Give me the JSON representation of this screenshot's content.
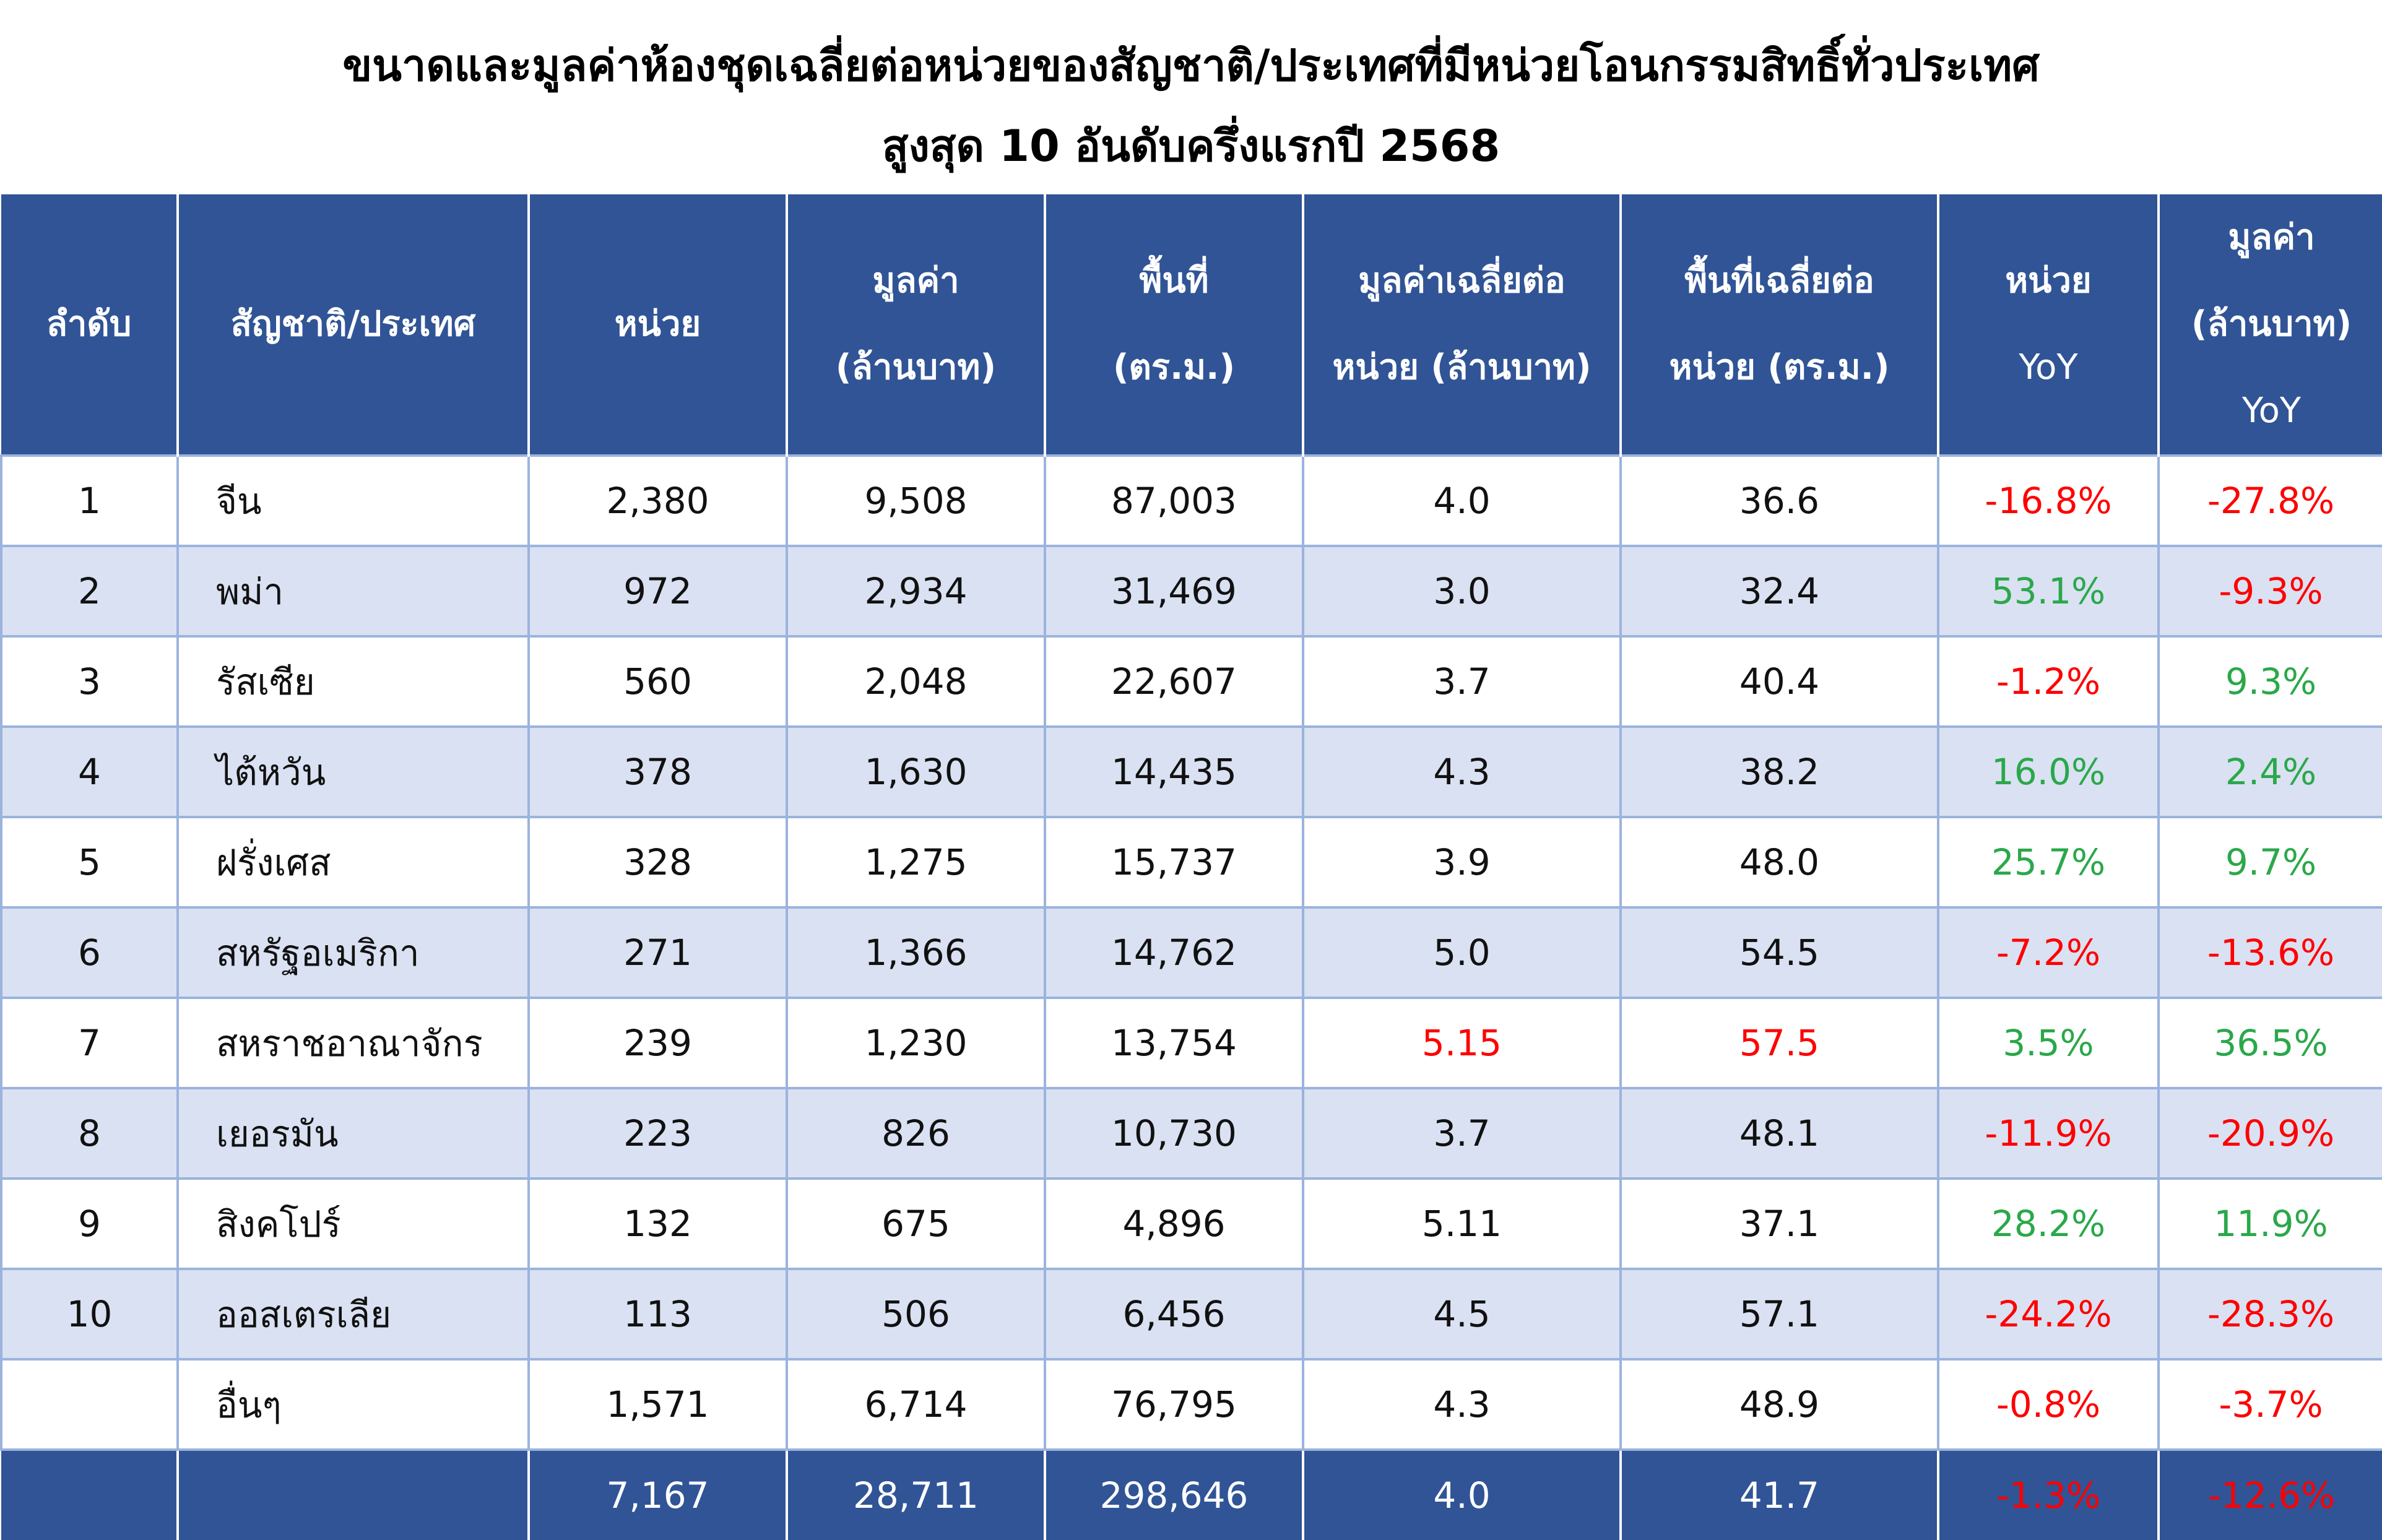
{
  "title": {
    "line1": "ขนาดและมูลค่าห้องชุดเฉลี่ยต่อหน่วยของสัญชาติ/ประเทศที่มีหน่วยโอนกรรมสิทธิ์ทั่วประเทศ",
    "line2": "สูงสุด 10 อันดับครึ่งแรกปี 2568"
  },
  "headers": [
    {
      "l1": "ลำดับ"
    },
    {
      "l1": "สัญชาติ/ประเทศ"
    },
    {
      "l1": "หน่วย"
    },
    {
      "l1": "มูลค่า",
      "l2": "(ล้านบาท)"
    },
    {
      "l1": "พื้นที่",
      "l2": "(ตร.ม.)"
    },
    {
      "l1": "มูลค่าเฉลี่ยต่อ",
      "l2": "หน่วย (ล้านบาท)"
    },
    {
      "l1": "พื้นที่เฉลี่ยต่อ",
      "l2": "หน่วย (ตร.ม.)"
    },
    {
      "l1": "หน่วย",
      "l2": "YoY"
    },
    {
      "l1": "มูลค่า",
      "l2": "(ล้านบาท)",
      "l3": "YoY"
    }
  ],
  "colors": {
    "header": "#305496",
    "alt_row": "#d9e1f2",
    "negative": "#ff0000",
    "positive": "#2aa84a"
  },
  "rows": [
    [
      "1",
      "จีน",
      "2,380",
      "9,508",
      "87,003",
      "4.0",
      "36.6",
      "-16.8%",
      "-27.8%"
    ],
    [
      "2",
      "พม่า",
      "972",
      "2,934",
      "31,469",
      "3.0",
      "32.4",
      "53.1%",
      "-9.3%"
    ],
    [
      "3",
      "รัสเซีย",
      "560",
      "2,048",
      "22,607",
      "3.7",
      "40.4",
      "-1.2%",
      "9.3%"
    ],
    [
      "4",
      "ไต้หวัน",
      "378",
      "1,630",
      "14,435",
      "4.3",
      "38.2",
      "16.0%",
      "2.4%"
    ],
    [
      "5",
      "ฝรั่งเศส",
      "328",
      "1,275",
      "15,737",
      "3.9",
      "48.0",
      "25.7%",
      "9.7%"
    ],
    [
      "6",
      "สหรัฐอเมริกา",
      "271",
      "1,366",
      "14,762",
      "5.0",
      "54.5",
      "-7.2%",
      "-13.6%"
    ],
    [
      "7",
      "สหราชอาณาจักร",
      "239",
      "1,230",
      "13,754",
      "5.15",
      "57.5",
      "3.5%",
      "36.5%"
    ],
    [
      "8",
      "เยอรมัน",
      "223",
      "826",
      "10,730",
      "3.7",
      "48.1",
      "-11.9%",
      "-20.9%"
    ],
    [
      "9",
      "สิงคโปร์",
      "132",
      "675",
      "4,896",
      "5.11",
      "37.1",
      "28.2%",
      "11.9%"
    ],
    [
      "10",
      "ออสเตรเลีย",
      "113",
      "506",
      "6,456",
      "4.5",
      "57.1",
      "-24.2%",
      "-28.3%"
    ],
    [
      "",
      "อื่นๆ",
      "1,571",
      "6,714",
      "76,795",
      "4.3",
      "48.9",
      "-0.8%",
      "-3.7%"
    ]
  ],
  "highlighted_red": [
    [
      6,
      5
    ],
    [
      6,
      6
    ]
  ],
  "total": [
    "",
    "",
    "7,167",
    "28,711",
    "298,646",
    "4.0",
    "41.7",
    "-1.3%",
    "-12.6%"
  ]
}
